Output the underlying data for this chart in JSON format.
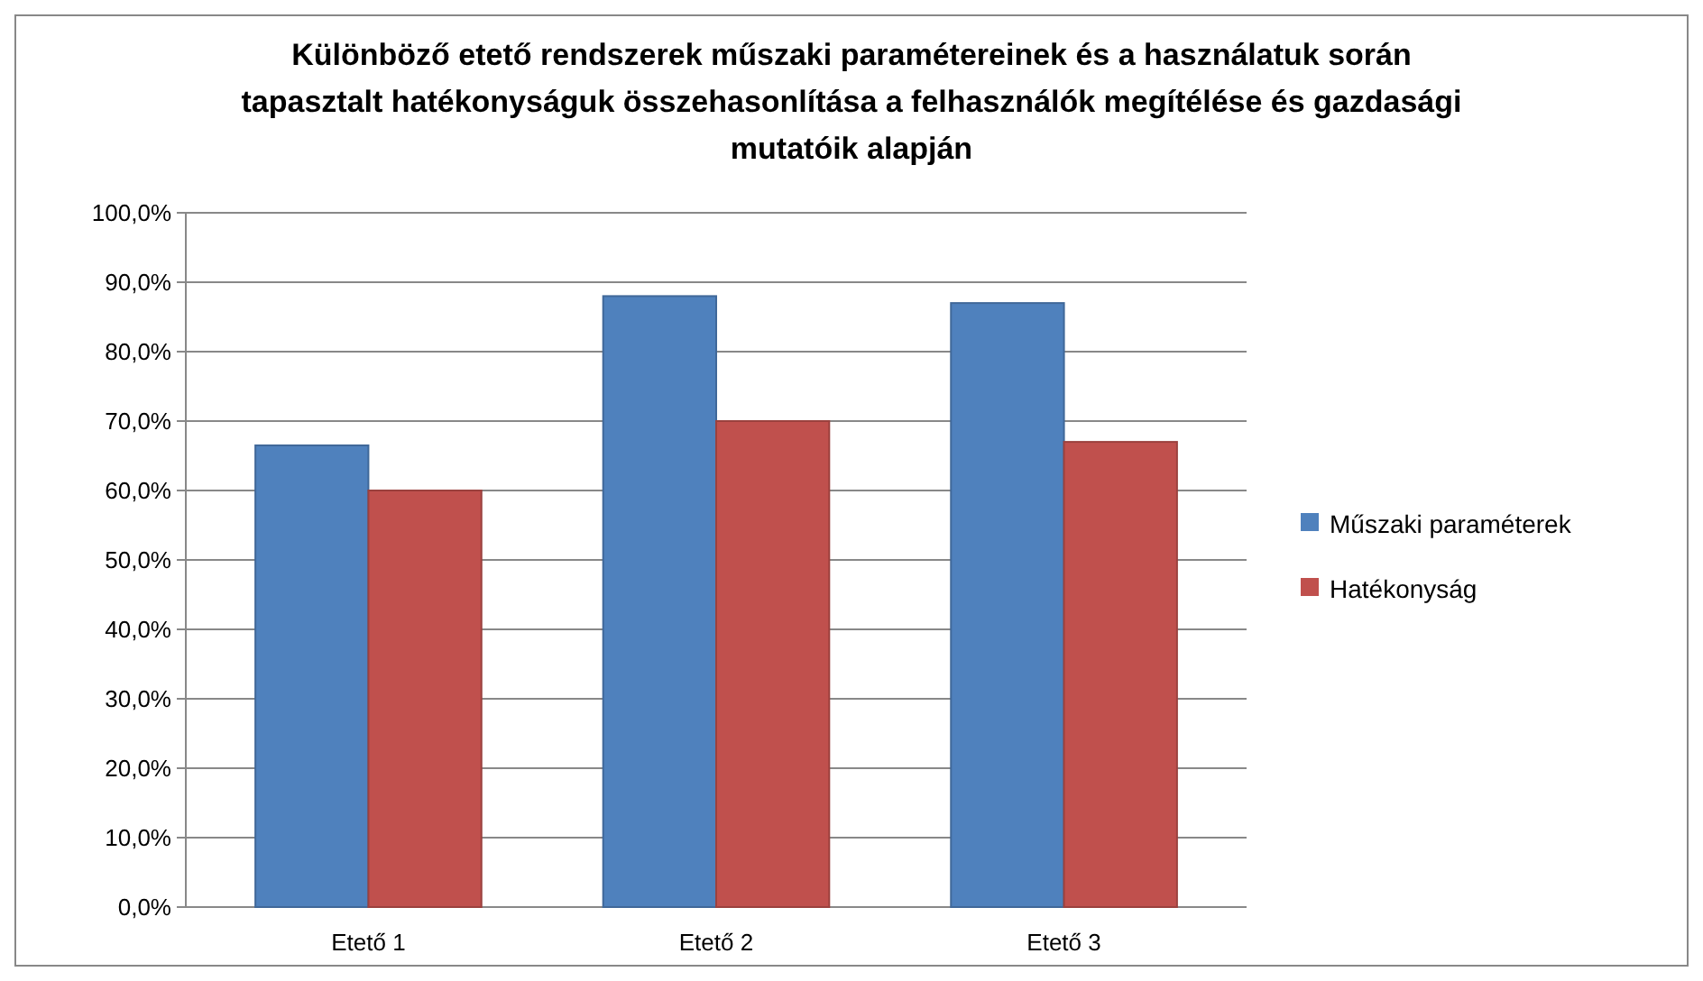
{
  "chart_data": {
    "type": "bar",
    "title": "Különböző etető rendszerek műszaki paramétereinek és a használatuk során tapasztalt hatékonyságuk összehasonlítása a felhasználók megítélése és gazdasági mutatóik alapján",
    "categories": [
      "Etető 1",
      "Etető 2",
      "Etető 3"
    ],
    "series": [
      {
        "name": "Műszaki paraméterek",
        "color": "#4f81bd",
        "values": [
          66.5,
          88,
          87
        ]
      },
      {
        "name": "Hatékonyság",
        "color": "#c0504d",
        "values": [
          60,
          70,
          67
        ]
      }
    ],
    "ylim": [
      0,
      100
    ],
    "yticks": [
      {
        "value": 0,
        "label": "0,0%"
      },
      {
        "value": 10,
        "label": "10,0%"
      },
      {
        "value": 20,
        "label": "20,0%"
      },
      {
        "value": 30,
        "label": "30,0%"
      },
      {
        "value": 40,
        "label": "40,0%"
      },
      {
        "value": 50,
        "label": "50,0%"
      },
      {
        "value": 60,
        "label": "60,0%"
      },
      {
        "value": 70,
        "label": "70,0%"
      },
      {
        "value": 80,
        "label": "80,0%"
      },
      {
        "value": 90,
        "label": "90,0%"
      },
      {
        "value": 100,
        "label": "100,0%"
      }
    ],
    "grid": "y",
    "legend": "right"
  }
}
